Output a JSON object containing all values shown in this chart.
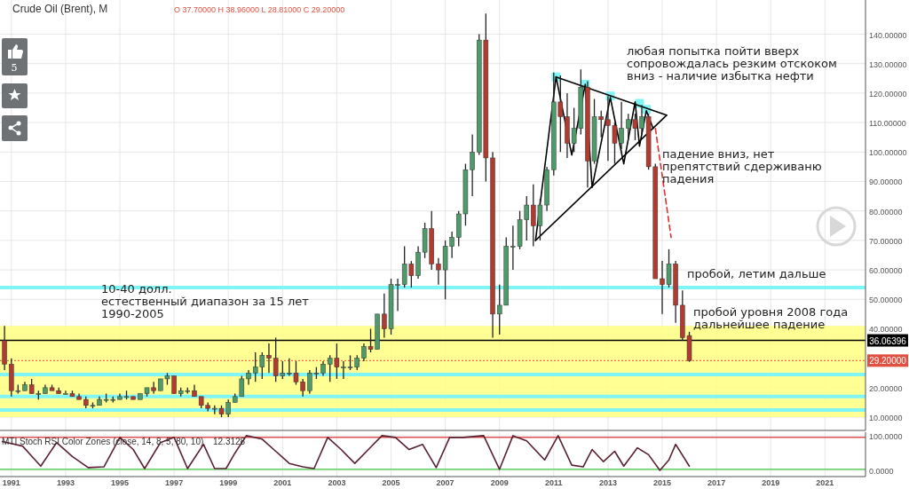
{
  "chart_data": [
    {
      "type": "candlestick",
      "title": "Crude Oil (Brent), M",
      "subtitle": "O 37.70000 H 38.96000 L 28.81000 C 29.20000",
      "x": [
        "1990-10",
        "1991-01",
        "1991-04",
        "1991-07",
        "1991-10",
        "1992-01",
        "1992-04",
        "1992-07",
        "1992-10",
        "1993-01",
        "1993-04",
        "1993-07",
        "1993-10",
        "1994-01",
        "1994-04",
        "1994-07",
        "1994-10",
        "1995-01",
        "1995-04",
        "1995-07",
        "1995-10",
        "1996-01",
        "1996-04",
        "1996-07",
        "1996-10",
        "1997-01",
        "1997-04",
        "1997-07",
        "1997-10",
        "1998-01",
        "1998-04",
        "1998-07",
        "1998-10",
        "1999-01",
        "1999-04",
        "1999-07",
        "1999-10",
        "2000-01",
        "2000-04",
        "2000-07",
        "2000-10",
        "2001-01",
        "2001-04",
        "2001-07",
        "2001-10",
        "2002-01",
        "2002-04",
        "2002-07",
        "2002-10",
        "2003-01",
        "2003-04",
        "2003-07",
        "2003-10",
        "2004-01",
        "2004-04",
        "2004-07",
        "2004-10",
        "2005-01",
        "2005-04",
        "2005-07",
        "2005-10",
        "2006-01",
        "2006-04",
        "2006-07",
        "2006-10",
        "2007-01",
        "2007-04",
        "2007-07",
        "2007-10",
        "2008-01",
        "2008-04",
        "2008-07",
        "2008-10",
        "2009-01",
        "2009-04",
        "2009-07",
        "2009-10",
        "2010-01",
        "2010-04",
        "2010-07",
        "2010-10",
        "2011-01",
        "2011-04",
        "2011-07",
        "2011-10",
        "2012-01",
        "2012-04",
        "2012-07",
        "2012-10",
        "2013-01",
        "2013-04",
        "2013-07",
        "2013-10",
        "2014-01",
        "2014-04",
        "2014-07",
        "2014-10",
        "2015-01",
        "2015-04",
        "2015-07",
        "2015-10",
        "2016-01"
      ],
      "ohlc": [
        [
          36,
          41,
          26,
          28
        ],
        [
          28,
          30,
          17,
          19
        ],
        [
          19,
          21,
          18,
          19
        ],
        [
          19,
          22,
          19,
          21
        ],
        [
          21,
          23,
          18,
          18
        ],
        [
          18,
          19,
          16,
          18
        ],
        [
          18,
          21,
          18,
          20
        ],
        [
          20,
          21,
          19,
          19
        ],
        [
          19,
          20,
          18,
          18
        ],
        [
          18,
          19,
          18,
          18
        ],
        [
          18,
          19,
          17,
          17
        ],
        [
          17,
          18,
          16,
          16
        ],
        [
          16,
          17,
          13,
          14
        ],
        [
          14,
          15,
          13,
          14
        ],
        [
          14,
          17,
          14,
          16
        ],
        [
          16,
          18,
          15,
          16
        ],
        [
          16,
          17,
          15,
          16
        ],
        [
          16,
          18,
          16,
          17
        ],
        [
          17,
          19,
          16,
          17
        ],
        [
          17,
          17,
          16,
          16
        ],
        [
          16,
          18,
          16,
          18
        ],
        [
          18,
          20,
          17,
          20
        ],
        [
          20,
          22,
          18,
          19
        ],
        [
          19,
          23,
          19,
          23
        ],
        [
          23,
          25,
          21,
          24
        ],
        [
          24,
          24,
          18,
          18
        ],
        [
          18,
          20,
          17,
          19
        ],
        [
          19,
          20,
          18,
          19
        ],
        [
          19,
          21,
          17,
          17
        ],
        [
          17,
          17,
          13,
          14
        ],
        [
          14,
          15,
          12,
          13
        ],
        [
          13,
          14,
          11,
          13
        ],
        [
          13,
          14,
          10,
          11
        ],
        [
          11,
          16,
          10,
          15
        ],
        [
          15,
          18,
          15,
          17
        ],
        [
          17,
          24,
          17,
          23
        ],
        [
          23,
          26,
          21,
          25
        ],
        [
          25,
          32,
          22,
          27
        ],
        [
          27,
          32,
          23,
          31
        ],
        [
          31,
          35,
          25,
          30
        ],
        [
          30,
          37,
          22,
          24
        ],
        [
          24,
          29,
          23,
          25
        ],
        [
          25,
          30,
          24,
          25
        ],
        [
          25,
          29,
          21,
          22
        ],
        [
          22,
          23,
          17,
          19
        ],
        [
          19,
          26,
          18,
          25
        ],
        [
          25,
          27,
          23,
          25
        ],
        [
          25,
          29,
          24,
          28
        ],
        [
          28,
          31,
          22,
          30
        ],
        [
          30,
          35,
          23,
          27
        ],
        [
          27,
          29,
          23,
          27
        ],
        [
          27,
          31,
          26,
          27
        ],
        [
          27,
          31,
          26,
          30
        ],
        [
          30,
          35,
          29,
          34
        ],
        [
          34,
          40,
          32,
          33
        ],
        [
          33,
          45,
          33,
          45
        ],
        [
          45,
          52,
          37,
          40
        ],
        [
          40,
          57,
          38,
          55
        ],
        [
          55,
          57,
          46,
          55
        ],
        [
          55,
          68,
          54,
          62
        ],
        [
          62,
          63,
          54,
          58
        ],
        [
          58,
          68,
          57,
          66
        ],
        [
          66,
          76,
          64,
          74
        ],
        [
          74,
          80,
          60,
          62
        ],
        [
          62,
          64,
          55,
          60
        ],
        [
          60,
          70,
          50,
          68
        ],
        [
          68,
          73,
          64,
          71
        ],
        [
          71,
          80,
          68,
          79
        ],
        [
          79,
          96,
          75,
          94
        ],
        [
          94,
          106,
          85,
          100
        ],
        [
          100,
          140,
          99,
          138
        ],
        [
          138,
          147,
          90,
          98
        ],
        [
          98,
          100,
          37,
          45
        ],
        [
          45,
          55,
          38,
          48
        ],
        [
          48,
          71,
          48,
          68
        ],
        [
          68,
          75,
          60,
          68
        ],
        [
          68,
          80,
          67,
          77
        ],
        [
          77,
          85,
          70,
          82
        ],
        [
          82,
          89,
          68,
          75
        ],
        [
          75,
          84,
          70,
          82
        ],
        [
          82,
          95,
          80,
          94
        ],
        [
          94,
          127,
          92,
          117
        ],
        [
          117,
          126,
          100,
          112
        ],
        [
          112,
          120,
          98,
          103
        ],
        [
          103,
          115,
          100,
          108
        ],
        [
          108,
          128,
          106,
          122
        ],
        [
          122,
          124,
          88,
          97
        ],
        [
          97,
          118,
          96,
          112
        ],
        [
          112,
          114,
          105,
          111
        ],
        [
          111,
          119,
          97,
          109
        ],
        [
          109,
          110,
          96,
          103
        ],
        [
          103,
          117,
          101,
          108
        ],
        [
          108,
          113,
          104,
          111
        ],
        [
          111,
          113,
          104,
          108
        ],
        [
          108,
          116,
          106,
          112
        ],
        [
          112,
          113,
          94,
          95
        ],
        [
          95,
          96,
          57,
          57
        ],
        [
          57,
          63,
          45,
          55
        ],
        [
          55,
          67,
          54,
          62
        ],
        [
          62,
          63,
          42,
          48
        ],
        [
          48,
          53,
          36,
          37
        ],
        [
          37.7,
          38.96,
          28.81,
          29.2
        ]
      ],
      "series": [
        {
          "type": "scatter",
          "marker": "square",
          "color": "#80f5f5",
          "x": [
            "2011-02",
            "2012-03",
            "2013-02",
            "2014-03",
            "2014-06"
          ],
          "values": [
            125.5,
            123,
            119,
            116.5,
            114.5
          ]
        },
        {
          "type": "line",
          "color": "#000000",
          "line_style": "solid",
          "x": [
            "2011-02",
            "2015-03"
          ],
          "values": [
            125.5,
            112.5
          ]
        },
        {
          "type": "line",
          "color": "#000000",
          "line_style": "solid",
          "x": [
            "2010-05",
            "2015-03"
          ],
          "values": [
            70,
            112.5
          ]
        },
        {
          "type": "line",
          "color": "#000000",
          "line_style": "solid",
          "x": [
            "2010-05",
            "2011-02",
            "2011-09",
            "2012-03",
            "2012-06",
            "2013-02",
            "2013-08",
            "2014-01",
            "2014-03",
            "2014-06",
            "2014-09"
          ],
          "values": [
            70,
            125.5,
            99,
            123,
            88,
            118.5,
            96,
            117,
            102,
            114,
            108
          ]
        },
        {
          "type": "line",
          "color": "#e03030",
          "line_style": "dashed",
          "x": [
            "2014-10",
            "2015-05"
          ],
          "values": [
            108,
            71
          ]
        }
      ],
      "ref_lines": [
        {
          "axis": "y",
          "value": 36.06396,
          "label": "36.06396",
          "color": "#000000",
          "line_style": "solid"
        },
        {
          "axis": "y",
          "value": 29.2,
          "label": "29.20000",
          "color": "#e05040",
          "line_style": "dotted"
        },
        {
          "axis": "y",
          "value": 54,
          "color": "#80f5f5",
          "line_style": "solid"
        },
        {
          "axis": "y",
          "value": 24.5,
          "color": "#80f5f5",
          "line_style": "solid"
        },
        {
          "axis": "y",
          "value": 17,
          "color": "#80f5f5",
          "line_style": "solid"
        },
        {
          "axis": "y",
          "value": 12.4,
          "color": "#80f5f5",
          "line_style": "solid"
        }
      ],
      "bands": [
        {
          "axis": "y",
          "from": 10,
          "to": 41,
          "color": "#ffff80"
        }
      ],
      "annotations": [
        "5",
        "10-40 долл.\nестественный диапазон за 15 лет\n1990-2005",
        "любая попытка пойти вверх\nсопровождалась резким отскоком\nвниз - наличие избытка нефти",
        "падение вниз, нет\nпрепятствий сдерживаню\nпадения",
        "пробой, летим дальше",
        "пробой уровня 2008 года\nдальнейшее падение"
      ],
      "xlim": [
        "1990-08",
        "2022-07"
      ],
      "ylim": [
        5.5,
        151.6
      ],
      "yticks": [
        {
          "value": 10,
          "label": "10.00000"
        },
        {
          "value": 20,
          "label": "20.00000"
        },
        {
          "value": 40,
          "label": "40.00000"
        },
        {
          "value": 50,
          "label": "50.00000"
        },
        {
          "value": 60,
          "label": "60.00000"
        },
        {
          "value": 70,
          "label": "70.00000"
        },
        {
          "value": 80,
          "label": "80.00000"
        },
        {
          "value": 90,
          "label": "90.00000"
        },
        {
          "value": 100,
          "label": "100.00000"
        },
        {
          "value": 110,
          "label": "110.00000"
        },
        {
          "value": 120,
          "label": "120.00000"
        },
        {
          "value": 130,
          "label": "130.00000"
        },
        {
          "value": 140,
          "label": "140.00000"
        }
      ],
      "xticks": [
        "1991",
        "1993",
        "1995",
        "1997",
        "1999",
        "2001",
        "2003",
        "2005",
        "2007",
        "2009",
        "2011",
        "2013",
        "2015",
        "2017",
        "2019",
        "2021"
      ],
      "grid": true,
      "tick_labels": "y"
    },
    {
      "type": "line",
      "title": "MTI Stoch RSI Color Zones (close, 14, 8, 5, 80, 10)",
      "subtitle": "12.3128",
      "x": [
        "1990-09",
        "1991-06",
        "1992-02",
        "1992-09",
        "1993-04",
        "1993-11",
        "1994-06",
        "1995-01",
        "1995-07",
        "1995-12",
        "1996-07",
        "1997-01",
        "1997-07",
        "1998-02",
        "1998-07",
        "1998-12",
        "1999-04",
        "1999-09",
        "2000-04",
        "2000-10",
        "2001-04",
        "2001-10",
        "2002-03",
        "2002-09",
        "2003-03",
        "2003-09",
        "2004-03",
        "2004-09",
        "2005-03",
        "2005-09",
        "2006-03",
        "2006-09",
        "2007-03",
        "2007-09",
        "2008-06",
        "2009-01",
        "2009-07",
        "2010-01",
        "2010-09",
        "2011-03",
        "2011-09",
        "2012-02",
        "2012-06",
        "2012-11",
        "2013-04",
        "2013-08",
        "2014-02",
        "2014-07",
        "2014-12",
        "2015-04",
        "2015-07",
        "2016-01"
      ],
      "series": [
        {
          "color": "#5a2030",
          "values": [
            83,
            70,
            12,
            80,
            40,
            8,
            10,
            95,
            60,
            5,
            80,
            95,
            5,
            75,
            5,
            5,
            50,
            100,
            90,
            55,
            20,
            10,
            5,
            95,
            60,
            20,
            60,
            100,
            95,
            60,
            75,
            8,
            95,
            95,
            100,
            3,
            100,
            85,
            30,
            100,
            15,
            10,
            60,
            25,
            55,
            12,
            65,
            45,
            0,
            30,
            75,
            12
          ]
        }
      ],
      "ref_lines": [
        {
          "axis": "y",
          "value": 95,
          "color": "#e05050",
          "line_style": "solid"
        },
        {
          "axis": "y",
          "value": 3,
          "color": "#60d060",
          "line_style": "solid"
        }
      ],
      "xlim": [
        "1990-08",
        "2022-07"
      ],
      "ylim": [
        -18,
        110
      ],
      "yticks": [
        {
          "value": 0,
          "label": "0.0000"
        },
        {
          "value": 100,
          "label": "100.0000"
        }
      ],
      "xticks": [
        "1991",
        "1993",
        "1995",
        "1997",
        "1999",
        "2001",
        "2003",
        "2005",
        "2007",
        "2009",
        "2011",
        "2013",
        "2015",
        "2017",
        "2019",
        "2021"
      ],
      "grid": true
    }
  ]
}
